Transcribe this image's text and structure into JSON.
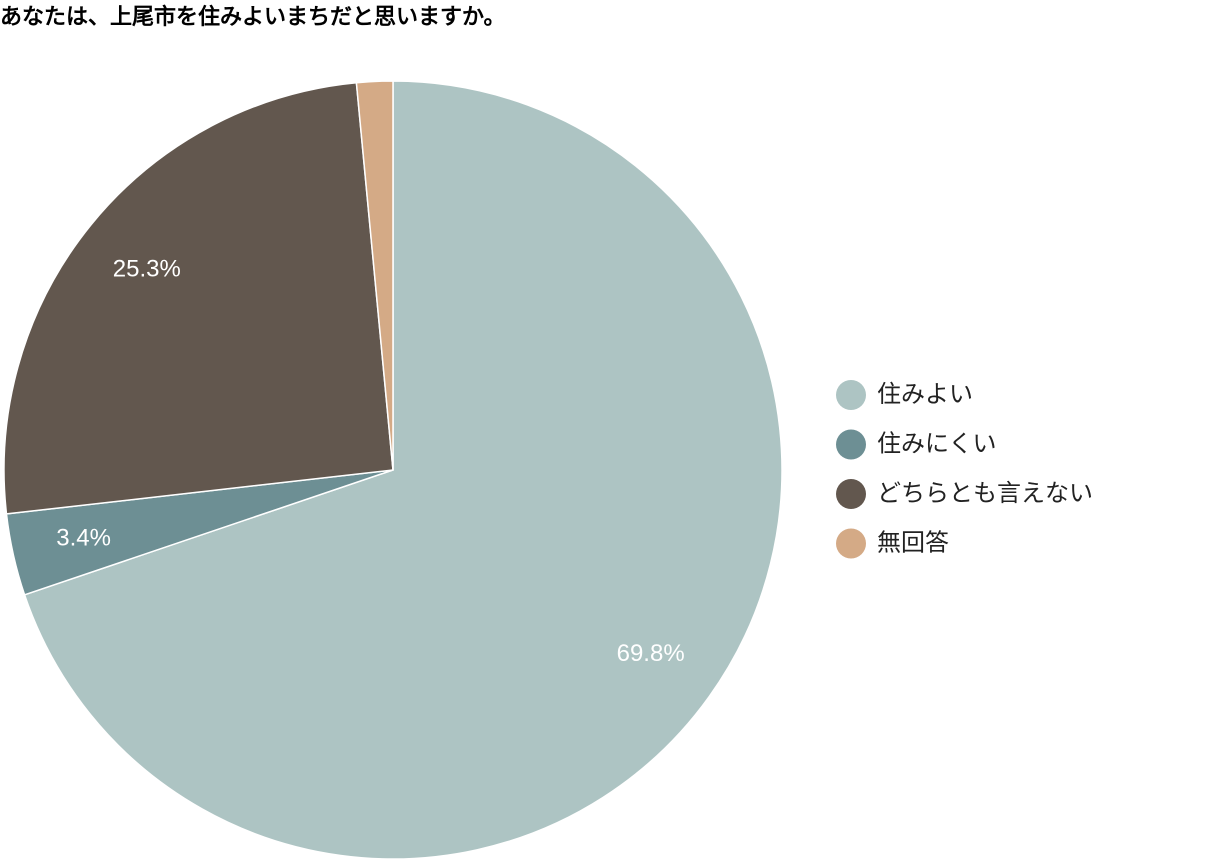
{
  "chart_data": {
    "type": "pie",
    "title": "あなたは、上尾市を住みよいまちだと思いますか。",
    "categories": [
      "住みよい",
      "住みにくい",
      "どちらとも言えない",
      "無回答"
    ],
    "values": [
      69.8,
      3.4,
      25.3,
      1.5
    ],
    "value_labels": [
      "69.8%",
      "3.4%",
      "25.3%",
      null
    ],
    "colors": [
      "#adc4c3",
      "#6d8f94",
      "#62574e",
      "#d4aa86"
    ],
    "legend": "right"
  }
}
